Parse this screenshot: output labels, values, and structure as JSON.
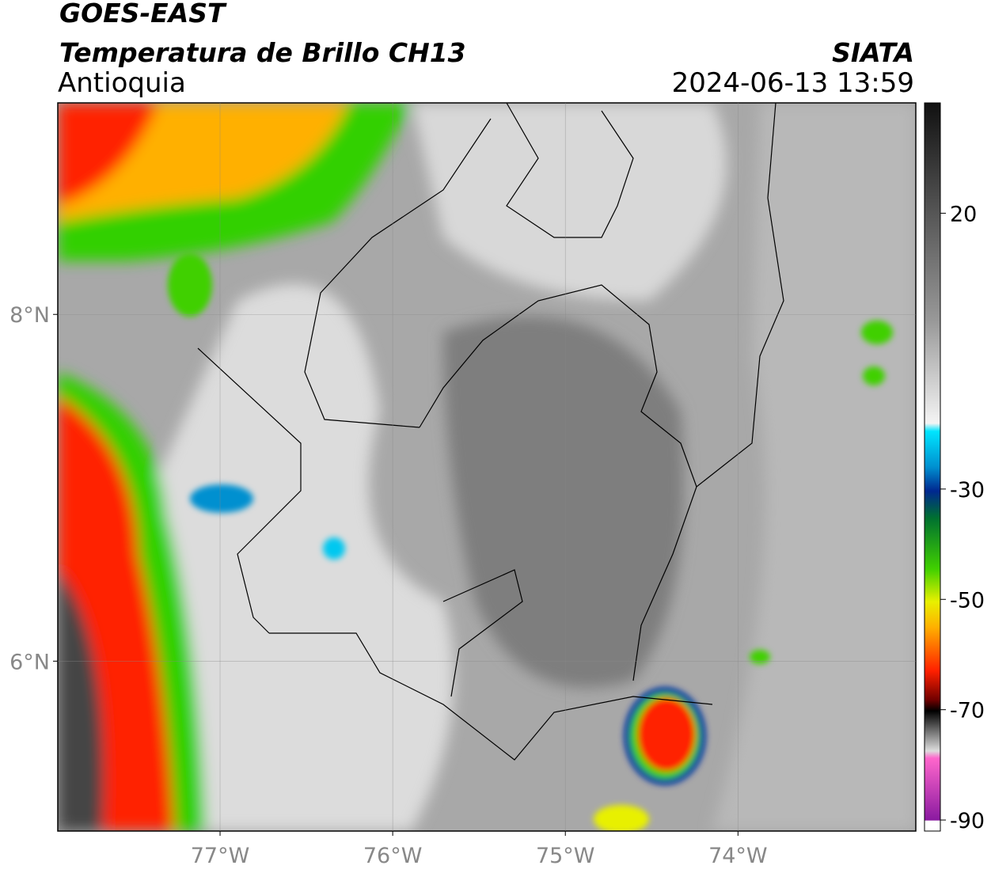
{
  "header": {
    "title": "GOES-EAST",
    "subtitle": "Temperatura de Brillo CH13",
    "region": "Antioquia",
    "source": "SIATA",
    "datetime": "2024-06-13 13:59"
  },
  "map": {
    "lon_range": [
      -77.94,
      -72.97
    ],
    "lat_range": [
      5.02,
      9.22
    ],
    "lon_ticks": [
      {
        "value": -77,
        "label": "77°W"
      },
      {
        "value": -76,
        "label": "76°W"
      },
      {
        "value": -75,
        "label": "75°W"
      },
      {
        "value": -74,
        "label": "74°W"
      }
    ],
    "lat_ticks": [
      {
        "value": 8,
        "label": "8°N"
      },
      {
        "value": 6,
        "label": "6°N"
      }
    ],
    "grid": true
  },
  "colorbar": {
    "range": [
      40,
      -92
    ],
    "ticks": [
      20,
      -30,
      -50,
      -70,
      -90
    ]
  }
}
